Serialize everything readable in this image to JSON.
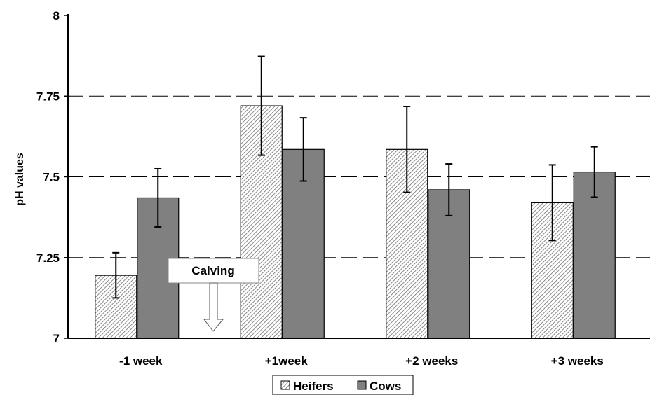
{
  "chart_data": {
    "type": "bar",
    "categories": [
      "-1 week",
      "+1week",
      "+2 weeks",
      "+3 weeks"
    ],
    "series": [
      {
        "name": "Heifers",
        "values": [
          7.195,
          7.72,
          7.585,
          7.42
        ],
        "errors": [
          0.07,
          0.153,
          0.133,
          0.117
        ]
      },
      {
        "name": "Cows",
        "values": [
          7.435,
          7.585,
          7.46,
          7.515
        ],
        "errors": [
          0.09,
          0.098,
          0.08,
          0.078
        ]
      }
    ],
    "title": "",
    "xlabel": "",
    "ylabel": "pH values",
    "ylim": [
      7,
      8
    ],
    "yticks": [
      "7",
      "7.25",
      "7.5",
      "7.75",
      "8"
    ],
    "grid": "horizontal dashed",
    "legend": "bottom-center",
    "annotation": {
      "text": "Calving",
      "category_index": 0.5
    },
    "colors": {
      "Heifers": "#d8d8d8",
      "Cows": "#808080"
    }
  }
}
